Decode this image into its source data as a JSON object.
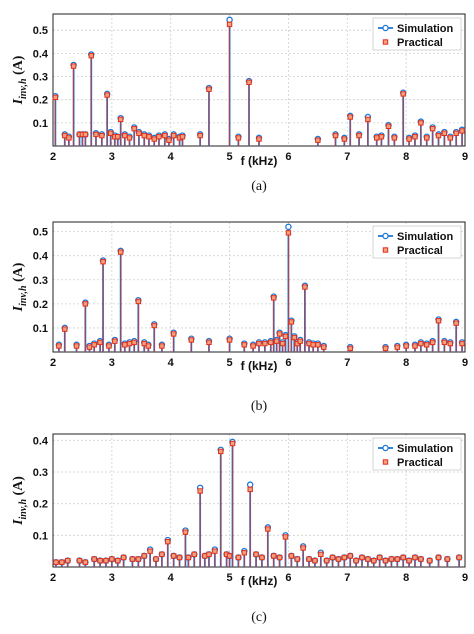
{
  "chart_data": [
    {
      "type": "stem",
      "caption": "(a)",
      "xlabel": "f (kHz)",
      "ylabel_main": "I",
      "ylabel_sub": "inv,h",
      "ylabel_unit": " (A)",
      "xlim": [
        2,
        9
      ],
      "ylim": [
        0,
        0.57
      ],
      "xticks": [
        "2",
        "3",
        "4",
        "5",
        "6",
        "7",
        "8",
        "9"
      ],
      "yticks": [
        "0.1",
        "0.2",
        "0.3",
        "0.4",
        "0.5"
      ],
      "grid": true,
      "legend_position": "top-right",
      "series": [
        {
          "name": "Simulation",
          "color": "#1f77d4",
          "x": [
            2.04,
            2.2,
            2.27,
            2.35,
            2.45,
            2.5,
            2.55,
            2.65,
            2.73,
            2.83,
            2.92,
            2.98,
            3.05,
            3.1,
            3.15,
            3.22,
            3.3,
            3.38,
            3.46,
            3.55,
            3.63,
            3.72,
            3.8,
            3.9,
            3.97,
            4.05,
            4.15,
            4.2,
            4.5,
            4.65,
            5.0,
            5.15,
            5.33,
            5.5,
            6.5,
            6.8,
            6.95,
            7.05,
            7.2,
            7.35,
            7.5,
            7.58,
            7.7,
            7.8,
            7.95,
            8.05,
            8.15,
            8.25,
            8.35,
            8.45,
            8.55,
            8.65,
            8.75,
            8.85,
            8.95
          ],
          "values": [
            0.215,
            0.05,
            0.04,
            0.35,
            0.05,
            0.05,
            0.05,
            0.395,
            0.055,
            0.05,
            0.225,
            0.06,
            0.045,
            0.04,
            0.12,
            0.05,
            0.04,
            0.08,
            0.06,
            0.05,
            0.045,
            0.035,
            0.045,
            0.05,
            0.03,
            0.05,
            0.04,
            0.045,
            0.05,
            0.25,
            0.545,
            0.04,
            0.28,
            0.035,
            0.03,
            0.05,
            0.035,
            0.13,
            0.05,
            0.125,
            0.04,
            0.045,
            0.09,
            0.04,
            0.23,
            0.035,
            0.045,
            0.105,
            0.04,
            0.08,
            0.05,
            0.06,
            0.04,
            0.06,
            0.07
          ]
        },
        {
          "name": "Practical",
          "color": "#e0301e",
          "x": [
            2.04,
            2.2,
            2.27,
            2.35,
            2.45,
            2.5,
            2.55,
            2.65,
            2.73,
            2.83,
            2.92,
            2.98,
            3.05,
            3.1,
            3.15,
            3.22,
            3.3,
            3.38,
            3.46,
            3.55,
            3.63,
            3.72,
            3.8,
            3.9,
            3.97,
            4.05,
            4.15,
            4.2,
            4.5,
            4.65,
            5.0,
            5.15,
            5.33,
            5.5,
            6.5,
            6.8,
            6.95,
            7.05,
            7.2,
            7.35,
            7.5,
            7.58,
            7.7,
            7.8,
            7.95,
            8.05,
            8.15,
            8.25,
            8.35,
            8.45,
            8.55,
            8.65,
            8.75,
            8.85,
            8.95
          ],
          "values": [
            0.21,
            0.045,
            0.035,
            0.345,
            0.05,
            0.05,
            0.05,
            0.39,
            0.05,
            0.045,
            0.22,
            0.055,
            0.04,
            0.04,
            0.115,
            0.045,
            0.035,
            0.075,
            0.055,
            0.045,
            0.04,
            0.03,
            0.04,
            0.045,
            0.025,
            0.045,
            0.035,
            0.04,
            0.045,
            0.245,
            0.525,
            0.035,
            0.275,
            0.03,
            0.025,
            0.045,
            0.03,
            0.125,
            0.045,
            0.115,
            0.035,
            0.04,
            0.085,
            0.035,
            0.225,
            0.03,
            0.04,
            0.1,
            0.035,
            0.075,
            0.045,
            0.055,
            0.035,
            0.055,
            0.065
          ]
        }
      ]
    },
    {
      "type": "stem",
      "caption": "(b)",
      "xlabel": "f (kHz)",
      "ylabel_main": "I",
      "ylabel_sub": "inv,h",
      "ylabel_unit": " (A)",
      "xlim": [
        2,
        9
      ],
      "ylim": [
        0,
        0.54
      ],
      "xticks": [
        "2",
        "3",
        "4",
        "5",
        "6",
        "7",
        "8",
        "9"
      ],
      "yticks": [
        "0.1",
        "0.2",
        "0.3",
        "0.4",
        "0.5"
      ],
      "grid": true,
      "legend_position": "top-right",
      "series": [
        {
          "name": "Simulation",
          "color": "#1f77d4",
          "x": [
            2.1,
            2.2,
            2.4,
            2.55,
            2.62,
            2.7,
            2.8,
            2.85,
            2.95,
            3.05,
            3.15,
            3.22,
            3.3,
            3.38,
            3.45,
            3.55,
            3.62,
            3.72,
            3.85,
            4.05,
            4.35,
            4.65,
            5.0,
            5.25,
            5.4,
            5.5,
            5.6,
            5.7,
            5.75,
            5.8,
            5.85,
            5.9,
            5.95,
            6.0,
            6.05,
            6.1,
            6.15,
            6.2,
            6.28,
            6.35,
            6.42,
            6.5,
            6.6,
            7.05,
            7.65,
            7.85,
            8.0,
            8.15,
            8.25,
            8.35,
            8.45,
            8.55,
            8.65,
            8.75,
            8.85,
            8.95
          ],
          "values": [
            0.03,
            0.1,
            0.03,
            0.205,
            0.025,
            0.035,
            0.045,
            0.38,
            0.03,
            0.05,
            0.42,
            0.035,
            0.04,
            0.045,
            0.215,
            0.04,
            0.03,
            0.115,
            0.03,
            0.08,
            0.055,
            0.045,
            0.055,
            0.035,
            0.03,
            0.04,
            0.04,
            0.045,
            0.23,
            0.05,
            0.08,
            0.04,
            0.07,
            0.52,
            0.13,
            0.065,
            0.04,
            0.05,
            0.275,
            0.04,
            0.035,
            0.035,
            0.025,
            0.02,
            0.02,
            0.025,
            0.03,
            0.03,
            0.04,
            0.035,
            0.045,
            0.135,
            0.045,
            0.04,
            0.125,
            0.04
          ]
        },
        {
          "name": "Practical",
          "color": "#e0301e",
          "x": [
            2.1,
            2.2,
            2.4,
            2.55,
            2.62,
            2.7,
            2.8,
            2.85,
            2.95,
            3.05,
            3.15,
            3.22,
            3.3,
            3.38,
            3.45,
            3.55,
            3.62,
            3.72,
            3.85,
            4.05,
            4.35,
            4.65,
            5.0,
            5.25,
            5.4,
            5.5,
            5.6,
            5.7,
            5.75,
            5.8,
            5.85,
            5.9,
            5.95,
            6.0,
            6.05,
            6.1,
            6.15,
            6.2,
            6.28,
            6.35,
            6.42,
            6.5,
            6.6,
            7.05,
            7.65,
            7.85,
            8.0,
            8.15,
            8.25,
            8.35,
            8.45,
            8.55,
            8.65,
            8.75,
            8.85,
            8.95
          ],
          "values": [
            0.025,
            0.095,
            0.025,
            0.2,
            0.02,
            0.03,
            0.04,
            0.375,
            0.025,
            0.045,
            0.415,
            0.03,
            0.035,
            0.04,
            0.21,
            0.035,
            0.025,
            0.11,
            0.025,
            0.075,
            0.05,
            0.04,
            0.05,
            0.03,
            0.025,
            0.035,
            0.035,
            0.04,
            0.225,
            0.045,
            0.075,
            0.035,
            0.065,
            0.495,
            0.125,
            0.06,
            0.035,
            0.045,
            0.27,
            0.035,
            0.03,
            0.03,
            0.02,
            0.015,
            0.015,
            0.02,
            0.025,
            0.025,
            0.035,
            0.03,
            0.04,
            0.13,
            0.04,
            0.035,
            0.12,
            0.035
          ]
        }
      ]
    },
    {
      "type": "stem",
      "caption": "(c)",
      "xlabel": "f (kHz)",
      "ylabel_main": "I",
      "ylabel_sub": "inv,h",
      "ylabel_unit": " (A)",
      "xlim": [
        2,
        9
      ],
      "ylim": [
        0,
        0.42
      ],
      "xticks": [
        "2",
        "3",
        "4",
        "5",
        "6",
        "7",
        "8",
        "9"
      ],
      "yticks": [
        "0.1",
        "0.2",
        "0.3",
        "0.4"
      ],
      "grid": true,
      "legend_position": "top-right",
      "series": [
        {
          "name": "Simulation",
          "color": "#1f77d4",
          "x": [
            2.05,
            2.15,
            2.25,
            2.45,
            2.55,
            2.7,
            2.8,
            2.9,
            3.0,
            3.1,
            3.2,
            3.35,
            3.45,
            3.55,
            3.65,
            3.75,
            3.85,
            3.95,
            4.05,
            4.15,
            4.25,
            4.3,
            4.4,
            4.5,
            4.58,
            4.65,
            4.75,
            4.85,
            4.95,
            5.0,
            5.05,
            5.15,
            5.25,
            5.35,
            5.45,
            5.55,
            5.65,
            5.75,
            5.85,
            5.95,
            6.05,
            6.15,
            6.25,
            6.35,
            6.45,
            6.55,
            6.65,
            6.75,
            6.85,
            6.95,
            7.05,
            7.15,
            7.25,
            7.35,
            7.45,
            7.55,
            7.65,
            7.75,
            7.85,
            7.95,
            8.05,
            8.15,
            8.25,
            8.4,
            8.55,
            8.7,
            8.9
          ],
          "values": [
            0.015,
            0.015,
            0.02,
            0.02,
            0.015,
            0.025,
            0.02,
            0.02,
            0.025,
            0.02,
            0.03,
            0.025,
            0.025,
            0.035,
            0.055,
            0.025,
            0.04,
            0.085,
            0.035,
            0.03,
            0.115,
            0.03,
            0.04,
            0.25,
            0.035,
            0.04,
            0.055,
            0.37,
            0.04,
            0.035,
            0.395,
            0.03,
            0.05,
            0.26,
            0.04,
            0.03,
            0.125,
            0.035,
            0.03,
            0.1,
            0.035,
            0.025,
            0.065,
            0.025,
            0.02,
            0.045,
            0.02,
            0.03,
            0.025,
            0.03,
            0.035,
            0.02,
            0.03,
            0.025,
            0.02,
            0.03,
            0.02,
            0.025,
            0.025,
            0.03,
            0.02,
            0.03,
            0.025,
            0.02,
            0.03,
            0.025,
            0.03
          ]
        },
        {
          "name": "Practical",
          "color": "#e0301e",
          "x": [
            2.05,
            2.15,
            2.25,
            2.45,
            2.55,
            2.7,
            2.8,
            2.9,
            3.0,
            3.1,
            3.2,
            3.35,
            3.45,
            3.55,
            3.65,
            3.75,
            3.85,
            3.95,
            4.05,
            4.15,
            4.25,
            4.3,
            4.4,
            4.5,
            4.58,
            4.65,
            4.75,
            4.85,
            4.95,
            5.0,
            5.05,
            5.15,
            5.25,
            5.35,
            5.45,
            5.55,
            5.65,
            5.75,
            5.85,
            5.95,
            6.05,
            6.15,
            6.25,
            6.35,
            6.45,
            6.55,
            6.65,
            6.75,
            6.85,
            6.95,
            7.05,
            7.15,
            7.25,
            7.35,
            7.45,
            7.55,
            7.65,
            7.75,
            7.85,
            7.95,
            8.05,
            8.15,
            8.25,
            8.4,
            8.55,
            8.7,
            8.9
          ],
          "values": [
            0.015,
            0.015,
            0.02,
            0.02,
            0.015,
            0.025,
            0.02,
            0.02,
            0.025,
            0.02,
            0.03,
            0.025,
            0.025,
            0.035,
            0.05,
            0.025,
            0.04,
            0.08,
            0.035,
            0.03,
            0.11,
            0.03,
            0.04,
            0.24,
            0.035,
            0.04,
            0.05,
            0.365,
            0.04,
            0.035,
            0.39,
            0.03,
            0.045,
            0.245,
            0.04,
            0.03,
            0.12,
            0.035,
            0.03,
            0.095,
            0.035,
            0.025,
            0.06,
            0.025,
            0.02,
            0.04,
            0.02,
            0.03,
            0.025,
            0.03,
            0.035,
            0.02,
            0.03,
            0.025,
            0.02,
            0.03,
            0.02,
            0.025,
            0.025,
            0.03,
            0.02,
            0.03,
            0.025,
            0.02,
            0.03,
            0.025,
            0.03
          ]
        }
      ]
    }
  ]
}
